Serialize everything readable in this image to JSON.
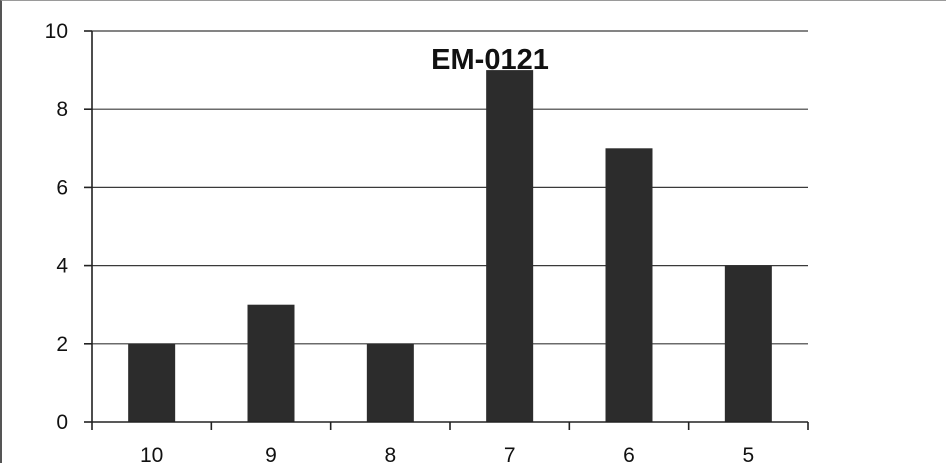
{
  "chart_data": {
    "type": "bar",
    "title": "EM-0121",
    "xlabel": "",
    "ylabel": "",
    "categories": [
      "10",
      "9",
      "8",
      "7",
      "6",
      "5"
    ],
    "values": [
      2,
      3,
      2,
      9,
      7,
      4
    ],
    "ylim": [
      0,
      10
    ],
    "yticks": [
      0,
      2,
      4,
      6,
      8,
      10
    ],
    "grid": true,
    "legend": "none",
    "colors": {
      "bar": "#2c2c2c",
      "grid": "#3a3a3a",
      "axis": "#222222"
    }
  }
}
